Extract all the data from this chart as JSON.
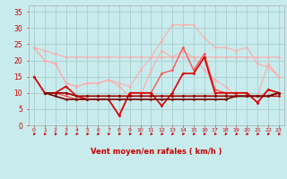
{
  "xlabel": "Vent moyen/en rafales ( km/h )",
  "x": [
    0,
    1,
    2,
    3,
    4,
    5,
    6,
    7,
    8,
    9,
    10,
    11,
    12,
    13,
    14,
    15,
    16,
    17,
    18,
    19,
    20,
    21,
    22,
    23
  ],
  "series": [
    {
      "color": "#ffaaaa",
      "lw": 0.8,
      "values": [
        24,
        23,
        22,
        21,
        21,
        21,
        21,
        21,
        21,
        21,
        21,
        21,
        21,
        21,
        21,
        21,
        21,
        21,
        21,
        21,
        21,
        21,
        21,
        21
      ]
    },
    {
      "color": "#ffaaaa",
      "lw": 0.8,
      "values": [
        24,
        20,
        19,
        13,
        12,
        13,
        13,
        14,
        13,
        12,
        17,
        21,
        26,
        31,
        31,
        31,
        27,
        24,
        24,
        23,
        24,
        19,
        18,
        15
      ]
    },
    {
      "color": "#ffaaaa",
      "lw": 0.8,
      "values": [
        24,
        20,
        19,
        13,
        12,
        13,
        13,
        14,
        12,
        9,
        9,
        17,
        23,
        21,
        23,
        21,
        17,
        14,
        12,
        9,
        9,
        9,
        19,
        15
      ]
    },
    {
      "color": "#ff5555",
      "lw": 1.0,
      "values": [
        15,
        10,
        10,
        9,
        8,
        8,
        8,
        8,
        3,
        10,
        10,
        10,
        16,
        17,
        24,
        17,
        22,
        11,
        10,
        10,
        10,
        7,
        11,
        10
      ]
    },
    {
      "color": "#dd0000",
      "lw": 1.2,
      "values": [
        15,
        10,
        10,
        12,
        9,
        8,
        8,
        8,
        3,
        10,
        10,
        10,
        6,
        10,
        16,
        16,
        21,
        10,
        10,
        10,
        10,
        7,
        11,
        10
      ]
    },
    {
      "color": "#bb0000",
      "lw": 1.0,
      "values": [
        null,
        10,
        10,
        10,
        9,
        9,
        9,
        9,
        9,
        9,
        9,
        9,
        9,
        9,
        9,
        9,
        9,
        9,
        9,
        9,
        9,
        9,
        9,
        9
      ]
    },
    {
      "color": "#990000",
      "lw": 1.0,
      "values": [
        null,
        10,
        10,
        10,
        9,
        9,
        9,
        9,
        9,
        9,
        9,
        9,
        9,
        9,
        9,
        9,
        9,
        9,
        9,
        9,
        9,
        9,
        9,
        10
      ]
    },
    {
      "color": "#770000",
      "lw": 1.2,
      "values": [
        null,
        10,
        9,
        8,
        8,
        8,
        8,
        8,
        8,
        8,
        8,
        8,
        8,
        8,
        8,
        8,
        8,
        8,
        8,
        9,
        9,
        9,
        9,
        10
      ]
    }
  ],
  "ylim": [
    0,
    37
  ],
  "yticks": [
    0,
    5,
    10,
    15,
    20,
    25,
    30,
    35
  ],
  "xlim": [
    -0.5,
    23.5
  ],
  "bg_color": "#c8eced",
  "grid_color": "#a8cece",
  "tick_color": "#cc0000",
  "label_color": "#cc0000",
  "axis_color": "#aaaaaa",
  "arrow_color": "#cc0000"
}
